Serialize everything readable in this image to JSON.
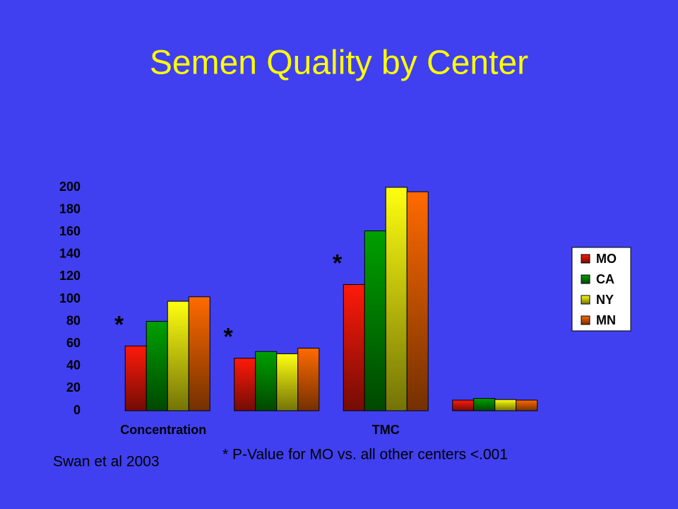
{
  "chart_data": {
    "type": "bar",
    "title": "Semen Quality by Center",
    "categories": [
      "Concentration",
      null,
      "TMC",
      null
    ],
    "series": [
      {
        "name": "MO",
        "color": "#ff1a0a",
        "values": [
          58,
          47,
          113,
          9.5
        ]
      },
      {
        "name": "CA",
        "color": "#00a000",
        "values": [
          80,
          53,
          161,
          11
        ]
      },
      {
        "name": "NY",
        "color": "#ffff10",
        "values": [
          98,
          51,
          200,
          10
        ]
      },
      {
        "name": "MN",
        "color": "#ff6a00",
        "values": [
          102,
          56,
          196,
          9.5
        ]
      }
    ],
    "ylim": [
      0,
      200
    ],
    "yticks": [
      0,
      20,
      40,
      60,
      80,
      100,
      120,
      140,
      160,
      180,
      200
    ],
    "annotations": [
      "*",
      "*",
      "*"
    ],
    "footnote": "* P-Value for MO vs. all other centers <.001",
    "source": "Swan et al 2003",
    "legend": "right"
  }
}
